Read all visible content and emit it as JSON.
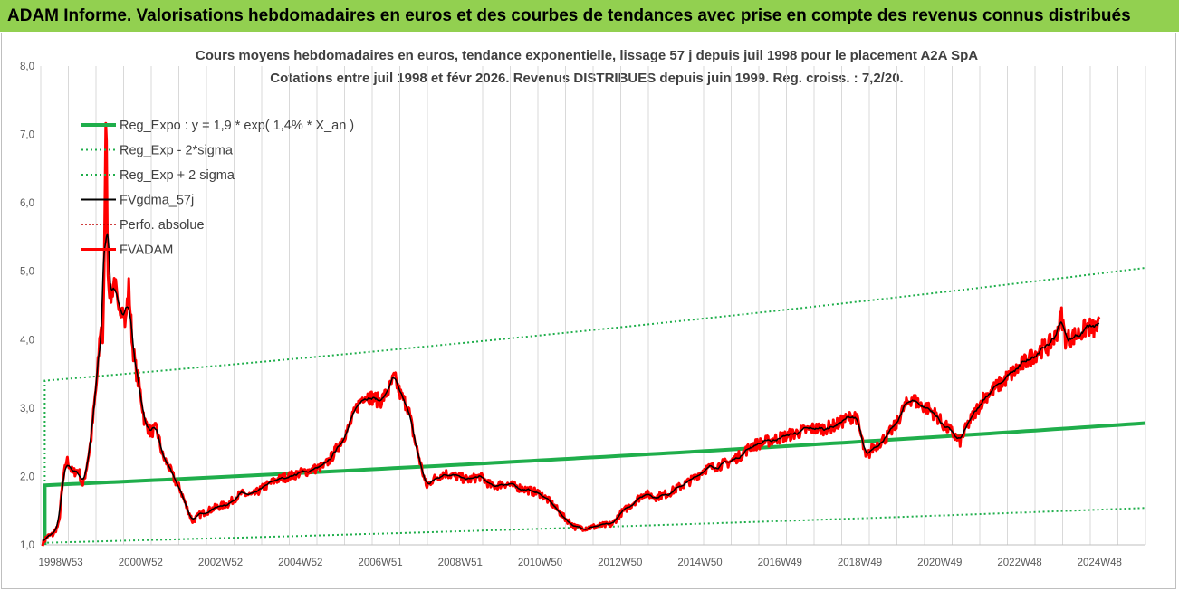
{
  "banner": {
    "title": "ADAM Informe. Valorisations hebdomadaires en euros et des courbes de tendances avec prise en compte des revenus connus distribués"
  },
  "colors": {
    "banner_bg": "#92d050",
    "reg_expo": "#1fae4b",
    "sigma": "#1fae4b",
    "fvgdma": "#000000",
    "perfo": "#c00000",
    "fvadam": "#ff0000",
    "grid": "#d9d9d9"
  },
  "chart_data": {
    "type": "line",
    "title_lines": [
      "Cours moyens hebdomadaires en euros, tendance exponentielle, lissage 57 j depuis juil 1998 pour le placement A2A SpA",
      "Cotations entre juil 1998 et févr 2026. Revenus DISTRIBUES depuis juin 1999. Reg. croiss. : 7,2/20."
    ],
    "ylim": [
      1.0,
      8.0
    ],
    "y_ticks": [
      "1,0",
      "2,0",
      "3,0",
      "4,0",
      "5,0",
      "6,0",
      "7,0",
      "8,0"
    ],
    "x_ticks": [
      {
        "label": "1998W53",
        "t": 1999.0
      },
      {
        "label": "2000W52",
        "t": 2001.0
      },
      {
        "label": "2002W52",
        "t": 2003.0
      },
      {
        "label": "2004W52",
        "t": 2005.0
      },
      {
        "label": "2006W51",
        "t": 2007.0
      },
      {
        "label": "2008W51",
        "t": 2009.0
      },
      {
        "label": "2010W50",
        "t": 2011.0
      },
      {
        "label": "2012W50",
        "t": 2013.0
      },
      {
        "label": "2014W50",
        "t": 2015.0
      },
      {
        "label": "2016W49",
        "t": 2017.0
      },
      {
        "label": "2018W49",
        "t": 2019.0
      },
      {
        "label": "2020W49",
        "t": 2021.0
      },
      {
        "label": "2022W48",
        "t": 2023.0
      },
      {
        "label": "2024W48",
        "t": 2025.0
      }
    ],
    "x_range": [
      1998.5,
      2026.15
    ],
    "grid": "vertical",
    "legend_position": "top-left",
    "series": [
      {
        "key": "reg",
        "name": "Reg_Expo : y = 1,9 * exp( 1,4% *  X_an )",
        "style": "solid-thick"
      },
      {
        "key": "minus",
        "name": "Reg_Exp - 2*sigma",
        "style": "dotted"
      },
      {
        "key": "plus",
        "name": "Reg_Exp + 2 sigma",
        "style": "dotted"
      },
      {
        "key": "gdma",
        "name": "FVgdma_57j",
        "style": "solid"
      },
      {
        "key": "perfo",
        "name": "Perfo. absolue",
        "style": "dotted"
      },
      {
        "key": "fvadam",
        "name": "FVADAM",
        "style": "solid-thick"
      }
    ],
    "regression": {
      "start": 1998.6,
      "reg_start": 1.87,
      "reg_end": 2.78,
      "minus_start": 1.03,
      "minus_end": 1.54,
      "plus_start": 3.4,
      "plus_end": 5.05
    },
    "fvadam_keypoints": [
      [
        1998.55,
        1.02
      ],
      [
        1998.65,
        1.12
      ],
      [
        1998.8,
        1.15
      ],
      [
        1998.95,
        1.3
      ],
      [
        1999.05,
        1.9
      ],
      [
        1999.15,
        2.25
      ],
      [
        1999.3,
        2.05
      ],
      [
        1999.45,
        2.1
      ],
      [
        1999.55,
        1.85
      ],
      [
        1999.65,
        2.15
      ],
      [
        1999.75,
        2.5
      ],
      [
        1999.85,
        3.1
      ],
      [
        1999.92,
        3.5
      ],
      [
        2000.0,
        4.2
      ],
      [
        2000.05,
        4.0
      ],
      [
        2000.1,
        5.3
      ],
      [
        2000.13,
        7.6
      ],
      [
        2000.18,
        5.0
      ],
      [
        2000.25,
        4.6
      ],
      [
        2000.35,
        4.9
      ],
      [
        2000.45,
        4.3
      ],
      [
        2000.55,
        4.6
      ],
      [
        2000.62,
        4.2
      ],
      [
        2000.7,
        4.8
      ],
      [
        2000.8,
        3.9
      ],
      [
        2000.9,
        3.5
      ],
      [
        2001.0,
        3.2
      ],
      [
        2001.1,
        2.8
      ],
      [
        2001.25,
        2.65
      ],
      [
        2001.4,
        2.7
      ],
      [
        2001.55,
        2.3
      ],
      [
        2001.7,
        2.15
      ],
      [
        2001.85,
        1.95
      ],
      [
        2002.0,
        1.8
      ],
      [
        2002.15,
        1.55
      ],
      [
        2002.3,
        1.35
      ],
      [
        2002.5,
        1.45
      ],
      [
        2002.7,
        1.5
      ],
      [
        2002.9,
        1.55
      ],
      [
        2003.2,
        1.6
      ],
      [
        2003.5,
        1.75
      ],
      [
        2003.8,
        1.72
      ],
      [
        2004.1,
        1.85
      ],
      [
        2004.4,
        1.95
      ],
      [
        2004.7,
        2.0
      ],
      [
        2005.0,
        2.05
      ],
      [
        2005.3,
        2.1
      ],
      [
        2005.6,
        2.15
      ],
      [
        2005.8,
        2.3
      ],
      [
        2006.0,
        2.5
      ],
      [
        2006.2,
        2.7
      ],
      [
        2006.4,
        3.0
      ],
      [
        2006.6,
        3.2
      ],
      [
        2006.8,
        3.15
      ],
      [
        2007.0,
        3.1
      ],
      [
        2007.2,
        3.25
      ],
      [
        2007.35,
        3.45
      ],
      [
        2007.5,
        3.2
      ],
      [
        2007.7,
        3.0
      ],
      [
        2007.85,
        2.55
      ],
      [
        2008.0,
        2.2
      ],
      [
        2008.15,
        1.85
      ],
      [
        2008.3,
        1.95
      ],
      [
        2008.6,
        2.05
      ],
      [
        2008.9,
        2.0
      ],
      [
        2009.2,
        1.95
      ],
      [
        2009.5,
        2.0
      ],
      [
        2009.8,
        1.85
      ],
      [
        2010.1,
        1.9
      ],
      [
        2010.4,
        1.85
      ],
      [
        2010.7,
        1.8
      ],
      [
        2011.0,
        1.75
      ],
      [
        2011.3,
        1.6
      ],
      [
        2011.6,
        1.4
      ],
      [
        2011.9,
        1.25
      ],
      [
        2012.2,
        1.25
      ],
      [
        2012.5,
        1.28
      ],
      [
        2012.8,
        1.3
      ],
      [
        2013.0,
        1.45
      ],
      [
        2013.3,
        1.6
      ],
      [
        2013.6,
        1.75
      ],
      [
        2013.9,
        1.7
      ],
      [
        2014.2,
        1.75
      ],
      [
        2014.5,
        1.85
      ],
      [
        2014.8,
        1.95
      ],
      [
        2015.1,
        2.1
      ],
      [
        2015.4,
        2.15
      ],
      [
        2015.7,
        2.2
      ],
      [
        2016.0,
        2.3
      ],
      [
        2016.3,
        2.45
      ],
      [
        2016.6,
        2.5
      ],
      [
        2016.9,
        2.55
      ],
      [
        2017.2,
        2.6
      ],
      [
        2017.5,
        2.65
      ],
      [
        2017.8,
        2.7
      ],
      [
        2018.1,
        2.7
      ],
      [
        2018.4,
        2.75
      ],
      [
        2018.7,
        2.85
      ],
      [
        2018.9,
        2.9
      ],
      [
        2019.05,
        2.55
      ],
      [
        2019.15,
        2.25
      ],
      [
        2019.3,
        2.4
      ],
      [
        2019.5,
        2.5
      ],
      [
        2019.7,
        2.6
      ],
      [
        2019.9,
        2.75
      ],
      [
        2020.1,
        3.0
      ],
      [
        2020.3,
        3.15
      ],
      [
        2020.5,
        3.05
      ],
      [
        2020.7,
        3.0
      ],
      [
        2020.9,
        2.9
      ],
      [
        2021.1,
        2.75
      ],
      [
        2021.3,
        2.65
      ],
      [
        2021.5,
        2.5
      ],
      [
        2021.7,
        2.75
      ],
      [
        2021.9,
        2.95
      ],
      [
        2022.1,
        3.15
      ],
      [
        2022.3,
        3.25
      ],
      [
        2022.5,
        3.35
      ],
      [
        2022.7,
        3.45
      ],
      [
        2022.9,
        3.55
      ],
      [
        2023.1,
        3.65
      ],
      [
        2023.3,
        3.75
      ],
      [
        2023.5,
        3.85
      ],
      [
        2023.7,
        3.9
      ],
      [
        2023.9,
        4.05
      ],
      [
        2024.05,
        4.35
      ],
      [
        2024.15,
        4.0
      ],
      [
        2024.35,
        4.05
      ],
      [
        2024.55,
        4.1
      ],
      [
        2024.7,
        4.2
      ],
      [
        2024.85,
        4.15
      ],
      [
        2025.0,
        4.2
      ]
    ]
  }
}
